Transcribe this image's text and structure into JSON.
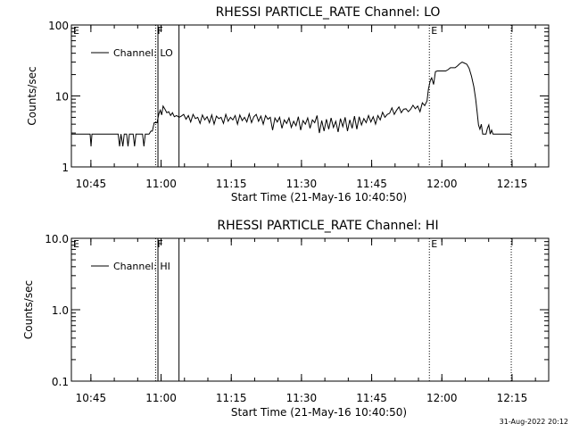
{
  "footer": {
    "date_stamp": "31-Aug-2022 20:12"
  },
  "chart_data": [
    {
      "type": "line",
      "title": "RHESSI PARTICLE_RATE Channel: LO",
      "xlabel": "Start Time (21-May-16 10:40:50)",
      "ylabel": "Counts/sec",
      "x_unit": "minutes after 10:40:50",
      "xlim": [
        0,
        102
      ],
      "ylim": [
        1,
        100
      ],
      "yscale": "log",
      "grid": false,
      "legend": {
        "position": "top-left",
        "label": "Channel: LO"
      },
      "xticks": [
        {
          "x": 4.17,
          "label": "10:45"
        },
        {
          "x": 19.17,
          "label": "11:00"
        },
        {
          "x": 34.17,
          "label": "11:15"
        },
        {
          "x": 49.17,
          "label": "11:30"
        },
        {
          "x": 64.17,
          "label": "11:45"
        },
        {
          "x": 79.17,
          "label": "12:00"
        },
        {
          "x": 94.17,
          "label": "12:15"
        }
      ],
      "yticks": [
        {
          "y": 1,
          "label": "1"
        },
        {
          "y": 10,
          "label": "10"
        },
        {
          "y": 100,
          "label": "100"
        }
      ],
      "markers": [
        {
          "label": "E",
          "x": 0,
          "style": "dotted"
        },
        {
          "label": "F",
          "x": 18.0,
          "style": "dotted"
        },
        {
          "label": "",
          "x": 18.5,
          "style": "solid"
        },
        {
          "label": "",
          "x": 23.0,
          "style": "solid"
        },
        {
          "label": "E",
          "x": 76.5,
          "style": "dotted"
        },
        {
          "label": "",
          "x": 94.0,
          "style": "dotted"
        }
      ],
      "series": [
        {
          "name": "Channel: LO",
          "points": [
            [
              0.0,
              2.9
            ],
            [
              4.0,
              2.9
            ],
            [
              4.2,
              1.95
            ],
            [
              4.4,
              2.9
            ],
            [
              10.0,
              2.9
            ],
            [
              10.3,
              1.95
            ],
            [
              10.6,
              2.9
            ],
            [
              11.0,
              1.95
            ],
            [
              11.3,
              2.9
            ],
            [
              11.8,
              2.9
            ],
            [
              12.1,
              1.95
            ],
            [
              12.4,
              2.9
            ],
            [
              13.2,
              2.9
            ],
            [
              13.5,
              1.95
            ],
            [
              13.8,
              2.9
            ],
            [
              15.2,
              2.9
            ],
            [
              15.5,
              1.95
            ],
            [
              15.8,
              2.9
            ],
            [
              16.6,
              2.9
            ],
            [
              17.0,
              3.2
            ],
            [
              17.3,
              3.2
            ],
            [
              17.7,
              4.2
            ],
            [
              18.3,
              4.2
            ],
            [
              18.7,
              5.6
            ],
            [
              19.0,
              6.3
            ],
            [
              19.3,
              5.4
            ],
            [
              19.6,
              7.2
            ],
            [
              20.0,
              6.5
            ],
            [
              20.4,
              5.8
            ],
            [
              20.8,
              6.0
            ],
            [
              21.2,
              5.3
            ],
            [
              21.6,
              5.8
            ],
            [
              22.0,
              5.1
            ],
            [
              22.5,
              5.3
            ],
            [
              23.0,
              5.0
            ],
            [
              23.5,
              5.2
            ],
            [
              24.0,
              5.5
            ],
            [
              24.5,
              4.7
            ],
            [
              25.0,
              5.3
            ],
            [
              25.5,
              4.3
            ],
            [
              26.0,
              5.5
            ],
            [
              26.5,
              4.8
            ],
            [
              27.0,
              5.0
            ],
            [
              27.5,
              4.1
            ],
            [
              28.0,
              5.4
            ],
            [
              28.5,
              4.6
            ],
            [
              29.0,
              5.1
            ],
            [
              29.5,
              4.2
            ],
            [
              30.0,
              5.4
            ],
            [
              30.5,
              4.0
            ],
            [
              31.0,
              5.2
            ],
            [
              31.5,
              4.8
            ],
            [
              32.0,
              5.0
            ],
            [
              32.5,
              4.1
            ],
            [
              33.0,
              5.5
            ],
            [
              33.5,
              4.4
            ],
            [
              34.0,
              5.0
            ],
            [
              34.5,
              4.6
            ],
            [
              35.0,
              5.3
            ],
            [
              35.5,
              4.0
            ],
            [
              36.0,
              5.4
            ],
            [
              36.5,
              4.5
            ],
            [
              37.0,
              5.0
            ],
            [
              37.5,
              4.3
            ],
            [
              38.0,
              5.6
            ],
            [
              38.5,
              4.2
            ],
            [
              39.0,
              5.1
            ],
            [
              39.5,
              5.5
            ],
            [
              40.0,
              4.4
            ],
            [
              40.5,
              5.2
            ],
            [
              41.0,
              4.0
            ],
            [
              41.5,
              5.3
            ],
            [
              42.0,
              4.7
            ],
            [
              42.5,
              5.0
            ],
            [
              43.0,
              3.3
            ],
            [
              43.5,
              4.9
            ],
            [
              44.0,
              4.3
            ],
            [
              44.5,
              5.0
            ],
            [
              45.0,
              3.5
            ],
            [
              45.5,
              4.6
            ],
            [
              46.0,
              4.1
            ],
            [
              46.5,
              4.9
            ],
            [
              47.0,
              3.6
            ],
            [
              47.5,
              4.4
            ],
            [
              48.0,
              3.8
            ],
            [
              48.5,
              5.1
            ],
            [
              49.0,
              3.3
            ],
            [
              49.5,
              4.5
            ],
            [
              50.0,
              4.0
            ],
            [
              50.5,
              4.9
            ],
            [
              51.0,
              3.5
            ],
            [
              51.5,
              4.6
            ],
            [
              52.0,
              4.2
            ],
            [
              52.5,
              5.3
            ],
            [
              53.0,
              3.0
            ],
            [
              53.5,
              4.5
            ],
            [
              54.0,
              3.2
            ],
            [
              54.5,
              4.7
            ],
            [
              55.0,
              3.4
            ],
            [
              55.5,
              4.9
            ],
            [
              56.0,
              3.6
            ],
            [
              56.5,
              4.4
            ],
            [
              57.0,
              3.1
            ],
            [
              57.5,
              4.8
            ],
            [
              58.0,
              3.7
            ],
            [
              58.5,
              5.0
            ],
            [
              59.0,
              3.2
            ],
            [
              59.5,
              4.6
            ],
            [
              60.0,
              3.5
            ],
            [
              60.5,
              5.2
            ],
            [
              61.0,
              3.4
            ],
            [
              61.5,
              5.1
            ],
            [
              62.0,
              3.9
            ],
            [
              62.5,
              4.8
            ],
            [
              63.0,
              4.2
            ],
            [
              63.5,
              5.3
            ],
            [
              64.0,
              4.3
            ],
            [
              64.5,
              5.1
            ],
            [
              65.0,
              4.0
            ],
            [
              65.5,
              5.3
            ],
            [
              66.0,
              4.6
            ],
            [
              66.5,
              5.9
            ],
            [
              67.0,
              5.0
            ],
            [
              67.5,
              5.5
            ],
            [
              68.0,
              5.7
            ],
            [
              68.5,
              6.8
            ],
            [
              69.0,
              5.5
            ],
            [
              69.5,
              6.3
            ],
            [
              70.0,
              7.0
            ],
            [
              70.5,
              5.8
            ],
            [
              71.0,
              6.5
            ],
            [
              71.5,
              6.6
            ],
            [
              72.0,
              6.0
            ],
            [
              72.5,
              6.5
            ],
            [
              73.0,
              7.4
            ],
            [
              73.5,
              6.6
            ],
            [
              74.0,
              7.2
            ],
            [
              74.5,
              6.0
            ],
            [
              75.0,
              8.0
            ],
            [
              75.5,
              7.3
            ],
            [
              76.0,
              8.5
            ],
            [
              76.3,
              12.5
            ],
            [
              76.7,
              16.5
            ],
            [
              77.0,
              18.0
            ],
            [
              77.4,
              14.5
            ],
            [
              77.8,
              22.0
            ],
            [
              78.2,
              22.5
            ],
            [
              79.0,
              22.5
            ],
            [
              80.0,
              22.5
            ],
            [
              80.5,
              23.5
            ],
            [
              81.0,
              25.0
            ],
            [
              82.0,
              25.0
            ],
            [
              82.5,
              26.5
            ],
            [
              83.0,
              28.5
            ],
            [
              83.5,
              30.0
            ],
            [
              84.0,
              29.0
            ],
            [
              84.5,
              28.0
            ],
            [
              85.0,
              24.5
            ],
            [
              85.5,
              19.0
            ],
            [
              86.0,
              13.5
            ],
            [
              86.4,
              9.0
            ],
            [
              86.7,
              6.0
            ],
            [
              87.0,
              3.9
            ],
            [
              87.3,
              3.4
            ],
            [
              87.6,
              4.0
            ],
            [
              87.9,
              2.9
            ],
            [
              88.6,
              2.9
            ],
            [
              88.9,
              3.5
            ],
            [
              89.2,
              3.9
            ],
            [
              89.5,
              2.9
            ],
            [
              89.8,
              3.3
            ],
            [
              90.1,
              2.9
            ],
            [
              94.0,
              2.9
            ]
          ]
        }
      ]
    },
    {
      "type": "line",
      "title": "RHESSI PARTICLE_RATE Channel: HI",
      "xlabel": "Start Time (21-May-16 10:40:50)",
      "ylabel": "Counts/sec",
      "x_unit": "minutes after 10:40:50",
      "xlim": [
        0,
        102
      ],
      "ylim": [
        0.1,
        10.0
      ],
      "yscale": "log",
      "grid": false,
      "legend": {
        "position": "top-left",
        "label": "Channel: HI"
      },
      "xticks": [
        {
          "x": 4.17,
          "label": "10:45"
        },
        {
          "x": 19.17,
          "label": "11:00"
        },
        {
          "x": 34.17,
          "label": "11:15"
        },
        {
          "x": 49.17,
          "label": "11:30"
        },
        {
          "x": 64.17,
          "label": "11:45"
        },
        {
          "x": 79.17,
          "label": "12:00"
        },
        {
          "x": 94.17,
          "label": "12:15"
        }
      ],
      "yticks": [
        {
          "y": 0.1,
          "label": "0.1"
        },
        {
          "y": 1.0,
          "label": "1.0"
        },
        {
          "y": 10.0,
          "label": "10.0"
        }
      ],
      "markers": [
        {
          "label": "E",
          "x": 0,
          "style": "dotted"
        },
        {
          "label": "F",
          "x": 18.0,
          "style": "dotted"
        },
        {
          "label": "",
          "x": 18.5,
          "style": "solid"
        },
        {
          "label": "",
          "x": 23.0,
          "style": "solid"
        },
        {
          "label": "E",
          "x": 76.5,
          "style": "dotted"
        },
        {
          "label": "",
          "x": 94.0,
          "style": "dotted"
        }
      ],
      "series": [
        {
          "name": "Channel: HI",
          "points": []
        }
      ]
    }
  ]
}
